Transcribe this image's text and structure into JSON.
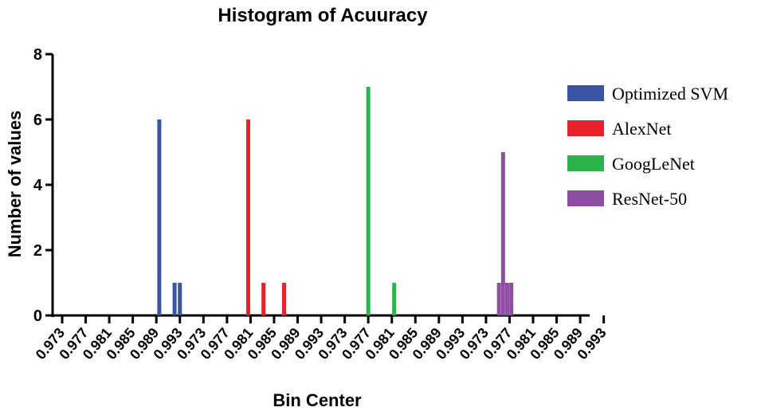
{
  "chart_data": {
    "type": "bar",
    "title": "Histogram of Acuuracy",
    "xlabel": "Bin Center",
    "ylabel": "Number of values",
    "ylim": [
      0,
      8
    ],
    "yticks": [
      "0",
      "2",
      "4",
      "6",
      "8"
    ],
    "grid": false,
    "legend_position": "right",
    "tick_labels": [
      "0.973",
      "0.977",
      "0.981",
      "0.985",
      "0.989",
      "0.993",
      "0.973",
      "0.977",
      "0.981",
      "0.985",
      "0.989",
      "0.993",
      "0.973",
      "0.977",
      "0.981",
      "0.985",
      "0.989",
      "0.993",
      "0.973",
      "0.977",
      "0.981",
      "0.985",
      "0.989",
      "0.993"
    ],
    "series": [
      {
        "name": "Optimized SVM",
        "color": "#3a55a4",
        "bars": [
          {
            "x": 0.9895,
            "value": 6
          },
          {
            "x": 0.9921,
            "value": 1
          },
          {
            "x": 0.993,
            "value": 1
          }
        ]
      },
      {
        "name": "AlexNet",
        "color": "#e8222b",
        "bars": [
          {
            "x": 0.9806,
            "value": 6
          },
          {
            "x": 0.9832,
            "value": 1
          },
          {
            "x": 0.9867,
            "value": 1
          }
        ]
      },
      {
        "name": "GoogLeNet",
        "color": "#2bb34c",
        "bars": [
          {
            "x": 0.977,
            "value": 7
          },
          {
            "x": 0.9814,
            "value": 1
          }
        ]
      },
      {
        "name": "ResNet-50",
        "color": "#8e4ea1",
        "bars": [
          {
            "x": 0.9752,
            "value": 1
          },
          {
            "x": 0.9759,
            "value": 5
          },
          {
            "x": 0.9766,
            "value": 1
          },
          {
            "x": 0.9773,
            "value": 1
          }
        ]
      }
    ]
  }
}
